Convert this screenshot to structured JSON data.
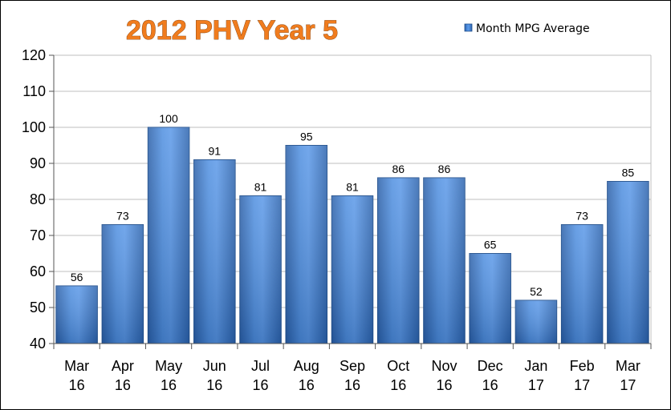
{
  "chart_data": {
    "type": "bar",
    "title": "2012 PHV  Year 5",
    "categories": [
      [
        "Mar",
        "16"
      ],
      [
        "Apr",
        "16"
      ],
      [
        "May",
        "16"
      ],
      [
        "Jun",
        "16"
      ],
      [
        "Jul",
        "16"
      ],
      [
        "Aug",
        "16"
      ],
      [
        "Sep",
        "16"
      ],
      [
        "Oct",
        "16"
      ],
      [
        "Nov",
        "16"
      ],
      [
        "Dec",
        "16"
      ],
      [
        "Jan",
        "17"
      ],
      [
        "Feb",
        "17"
      ],
      [
        "Mar",
        "17"
      ]
    ],
    "series": [
      {
        "name": "Month MPG Average",
        "values": [
          56,
          73,
          100,
          91,
          81,
          95,
          81,
          86,
          86,
          65,
          52,
          73,
          85
        ],
        "labels": [
          "56",
          "73",
          "100",
          "91",
          "81",
          "95",
          "81",
          "86",
          "86",
          "65",
          "52",
          "73",
          "85"
        ]
      }
    ],
    "ylim": [
      40,
      120
    ],
    "yticks": [
      "40",
      "50",
      "60",
      "70",
      "80",
      "90",
      "100",
      "110",
      "120"
    ],
    "ytick_values": [
      40,
      50,
      60,
      70,
      80,
      90,
      100,
      110,
      120
    ],
    "grid": true,
    "legend": "top-right",
    "colors": {
      "bar": "#3F7FD2",
      "bar_edge": "#1F4E8C",
      "title": "#F07C1E"
    }
  }
}
